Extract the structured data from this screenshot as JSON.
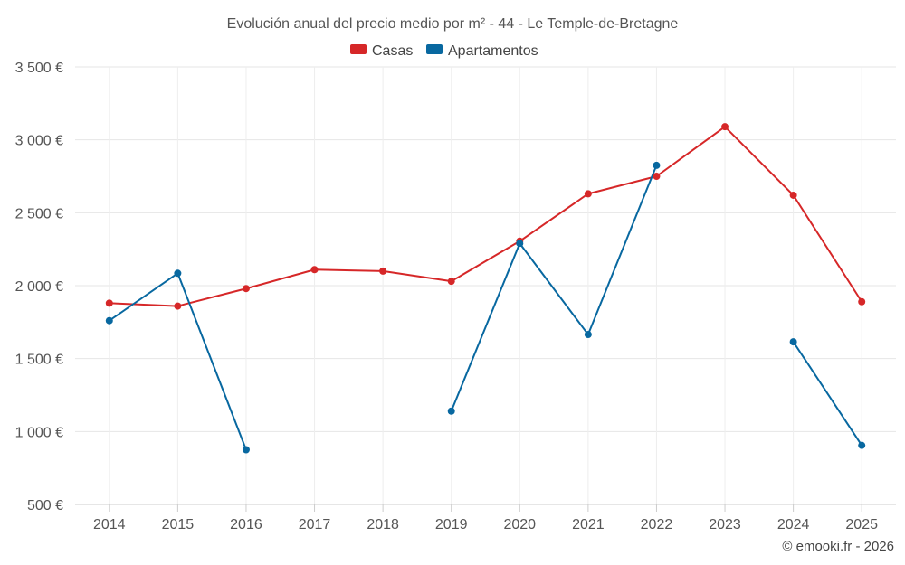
{
  "chart_data": {
    "type": "line",
    "title": "Evolución anual del precio medio por m² - 44 - Le Temple-de-Bretagne",
    "categories": [
      "2014",
      "2015",
      "2016",
      "2017",
      "2018",
      "2019",
      "2020",
      "2021",
      "2022",
      "2023",
      "2024",
      "2025"
    ],
    "ylim": [
      500,
      3500
    ],
    "yticks": [
      500,
      1000,
      1500,
      2000,
      2500,
      3000,
      3500
    ],
    "ytick_labels": [
      "500 €",
      "1 000 €",
      "1 500 €",
      "2 000 €",
      "2 500 €",
      "3 000 €",
      "3 500 €"
    ],
    "grid": true,
    "legend_position": "top-center",
    "series": [
      {
        "name": "Casas",
        "color": "#d62728",
        "values": [
          1880,
          1860,
          1980,
          2110,
          2100,
          2030,
          2305,
          2630,
          2750,
          3090,
          2620,
          1890
        ]
      },
      {
        "name": "Apartamentos",
        "color": "#0868a0",
        "values": [
          1760,
          2085,
          875,
          null,
          null,
          1140,
          2290,
          1665,
          2825,
          null,
          1615,
          905
        ]
      }
    ]
  },
  "credit": "© emooki.fr - 2026"
}
